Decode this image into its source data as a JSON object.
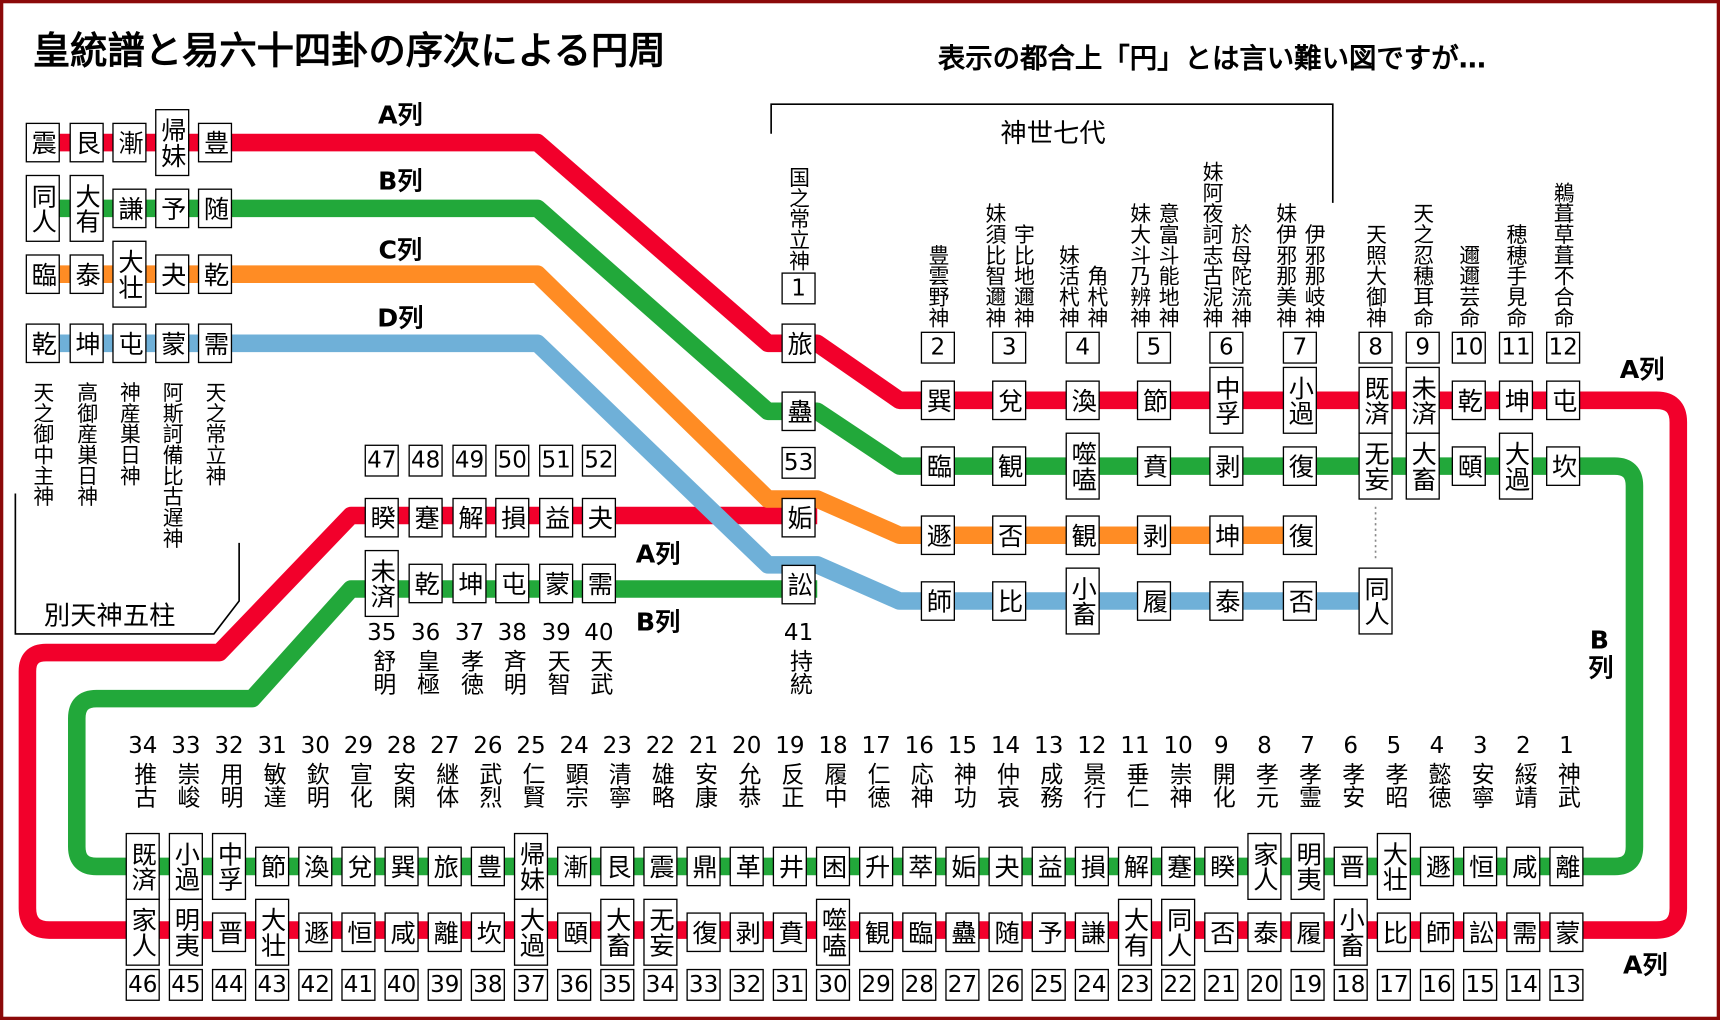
{
  "title": "皇統譜と易六十四卦の序次による円周",
  "subtitle": "表示の都合上「円」とは言い難い図ですが…",
  "line_labels": [
    "A列",
    "B列",
    "C列",
    "D列",
    "A列",
    "B列",
    "A列",
    "B列",
    "A列"
  ],
  "betsu_amatsukami": {
    "label": "別天神五柱",
    "columns": [
      {
        "cells": {
          "a": "震",
          "b": "同人",
          "c": "臨",
          "d": "乾"
        },
        "name": "天之御中主神"
      },
      {
        "cells": {
          "a": "艮",
          "b": "大有",
          "c": "泰",
          "d": "坤"
        },
        "name": "高御産巣日神"
      },
      {
        "cells": {
          "a": "漸",
          "b": "謙",
          "c": "大壮",
          "d": "屯"
        },
        "name": "神産巣日神"
      },
      {
        "cells": {
          "a": "帰妹",
          "b": "予",
          "c": "夬",
          "d": "蒙"
        },
        "name": "阿斯訶備比古遅神"
      },
      {
        "cells": {
          "a": "豊",
          "b": "随",
          "c": "乾",
          "d": "需"
        },
        "name": "天之常立神"
      }
    ]
  },
  "kamiyo_nanayo": {
    "label": "神世七代",
    "columns": [
      {
        "number": 1,
        "names": [
          "国之常立神"
        ],
        "cells": {
          "a": "旅",
          "b": "蠱",
          "c": "姤",
          "d": "訟"
        }
      },
      {
        "number": 2,
        "names": [
          "豊雲野神"
        ],
        "cells": {
          "a": "巽",
          "b": "臨",
          "c": "遯",
          "d": "師"
        }
      },
      {
        "number": 3,
        "names": [
          "宇比地邇神",
          "妹須比智邇神"
        ],
        "cells": {
          "a": "兌",
          "b": "観",
          "c": "否",
          "d": "比"
        }
      },
      {
        "number": 4,
        "names": [
          "角杙神",
          "妹活杙神"
        ],
        "cells": {
          "a": "渙",
          "b": "噬嗑",
          "c": "観",
          "d": "小畜"
        }
      },
      {
        "number": 5,
        "names": [
          "意富斗能地神",
          "妹大斗乃辨神"
        ],
        "cells": {
          "a": "節",
          "b": "賁",
          "c": "剥",
          "d": "履"
        }
      },
      {
        "number": 6,
        "names": [
          "於母陀流神",
          "妹阿夜訶志古泥神"
        ],
        "cells": {
          "a": "中孚",
          "b": "剥",
          "c": "坤",
          "d": "泰"
        }
      },
      {
        "number": 7,
        "names": [
          "伊邪那岐神",
          "妹伊邪那美神"
        ],
        "cells": {
          "a": "小過",
          "b": "復",
          "c": "復",
          "d": "否"
        }
      }
    ]
  },
  "later_gods": {
    "columns": [
      {
        "number": 8,
        "names": [
          "天照大御神"
        ],
        "cells": {
          "a": "既済",
          "b": "无妄",
          "d": "同人"
        }
      },
      {
        "number": 9,
        "names": [
          "天之忍穂耳命"
        ],
        "cells": {
          "a": "未済",
          "b": "大畜"
        }
      },
      {
        "number": 10,
        "names": [
          "邇邇芸命"
        ],
        "cells": {
          "a": "乾",
          "b": "頤"
        }
      },
      {
        "number": 11,
        "names": [
          "穂穂手見命"
        ],
        "cells": {
          "a": "坤",
          "b": "大過"
        }
      },
      {
        "number": 12,
        "names": [
          "鵜葺草葺不合命"
        ],
        "cells": {
          "a": "屯",
          "b": "坎"
        }
      }
    ]
  },
  "middle_row": {
    "columns": [
      {
        "upper_number": 47,
        "a": "睽",
        "b": "未済",
        "lower_number": 35,
        "name": "舒明"
      },
      {
        "upper_number": 48,
        "a": "蹇",
        "b": "乾",
        "lower_number": 36,
        "name": "皇極"
      },
      {
        "upper_number": 49,
        "a": "解",
        "b": "坤",
        "lower_number": 37,
        "name": "孝徳"
      },
      {
        "upper_number": 50,
        "a": "損",
        "b": "屯",
        "lower_number": 38,
        "name": "斉明"
      },
      {
        "upper_number": 51,
        "a": "益",
        "b": "蒙",
        "lower_number": 39,
        "name": "天智"
      },
      {
        "upper_number": 52,
        "a": "夬",
        "b": "需",
        "lower_number": 40,
        "name": "天武"
      }
    ],
    "center": {
      "upper_number": 53,
      "lower_number": 41,
      "name": "持統"
    }
  },
  "bottom_row": {
    "columns": [
      {
        "number": 1,
        "name": "神武",
        "b": "離",
        "a": "蒙",
        "lower_number": 13
      },
      {
        "number": 2,
        "name": "綏靖",
        "b": "咸",
        "a": "需",
        "lower_number": 14
      },
      {
        "number": 3,
        "name": "安寧",
        "b": "恒",
        "a": "訟",
        "lower_number": 15
      },
      {
        "number": 4,
        "name": "懿徳",
        "b": "遯",
        "a": "師",
        "lower_number": 16
      },
      {
        "number": 5,
        "name": "孝昭",
        "b": "大壮",
        "a": "比",
        "lower_number": 17
      },
      {
        "number": 6,
        "name": "孝安",
        "b": "晋",
        "a": "小畜",
        "lower_number": 18
      },
      {
        "number": 7,
        "name": "孝霊",
        "b": "明夷",
        "a": "履",
        "lower_number": 19
      },
      {
        "number": 8,
        "name": "孝元",
        "b": "家人",
        "a": "泰",
        "lower_number": 20
      },
      {
        "number": 9,
        "name": "開化",
        "b": "睽",
        "a": "否",
        "lower_number": 21
      },
      {
        "number": 10,
        "name": "崇神",
        "b": "蹇",
        "a": "同人",
        "lower_number": 22
      },
      {
        "number": 11,
        "name": "垂仁",
        "b": "解",
        "a": "大有",
        "lower_number": 23
      },
      {
        "number": 12,
        "name": "景行",
        "b": "損",
        "a": "謙",
        "lower_number": 24
      },
      {
        "number": 13,
        "name": "成務",
        "b": "益",
        "a": "予",
        "lower_number": 25
      },
      {
        "number": 14,
        "name": "仲哀",
        "b": "夬",
        "a": "随",
        "lower_number": 26
      },
      {
        "number": 15,
        "name": "神功",
        "b": "姤",
        "a": "蠱",
        "lower_number": 27
      },
      {
        "number": 16,
        "name": "応神",
        "b": "萃",
        "a": "臨",
        "lower_number": 28
      },
      {
        "number": 17,
        "name": "仁徳",
        "b": "升",
        "a": "観",
        "lower_number": 29
      },
      {
        "number": 18,
        "name": "履中",
        "b": "困",
        "a": "噬嗑",
        "lower_number": 30
      },
      {
        "number": 19,
        "name": "反正",
        "b": "井",
        "a": "賁",
        "lower_number": 31
      },
      {
        "number": 20,
        "name": "允恭",
        "b": "革",
        "a": "剥",
        "lower_number": 32
      },
      {
        "number": 21,
        "name": "安康",
        "b": "鼎",
        "a": "復",
        "lower_number": 33
      },
      {
        "number": 22,
        "name": "雄略",
        "b": "震",
        "a": "无妄",
        "lower_number": 34
      },
      {
        "number": 23,
        "name": "清寧",
        "b": "艮",
        "a": "大畜",
        "lower_number": 35
      },
      {
        "number": 24,
        "name": "顕宗",
        "b": "漸",
        "a": "頤",
        "lower_number": 36
      },
      {
        "number": 25,
        "name": "仁賢",
        "b": "帰妹",
        "a": "大過",
        "lower_number": 37
      },
      {
        "number": 26,
        "name": "武烈",
        "b": "豊",
        "a": "坎",
        "lower_number": 38
      },
      {
        "number": 27,
        "name": "継体",
        "b": "旅",
        "a": "離",
        "lower_number": 39
      },
      {
        "number": 28,
        "name": "安閑",
        "b": "巽",
        "a": "咸",
        "lower_number": 40
      },
      {
        "number": 29,
        "name": "宣化",
        "b": "兌",
        "a": "恒",
        "lower_number": 41
      },
      {
        "number": 30,
        "name": "欽明",
        "b": "渙",
        "a": "遯",
        "lower_number": 42
      },
      {
        "number": 31,
        "name": "敏達",
        "b": "節",
        "a": "大壮",
        "lower_number": 43
      },
      {
        "number": 32,
        "name": "用明",
        "b": "中孚",
        "a": "晋",
        "lower_number": 44
      },
      {
        "number": 33,
        "name": "崇峻",
        "b": "小過",
        "a": "明夷",
        "lower_number": 45
      },
      {
        "number": 34,
        "name": "推古",
        "b": "既済",
        "a": "家人",
        "lower_number": 46
      }
    ]
  }
}
